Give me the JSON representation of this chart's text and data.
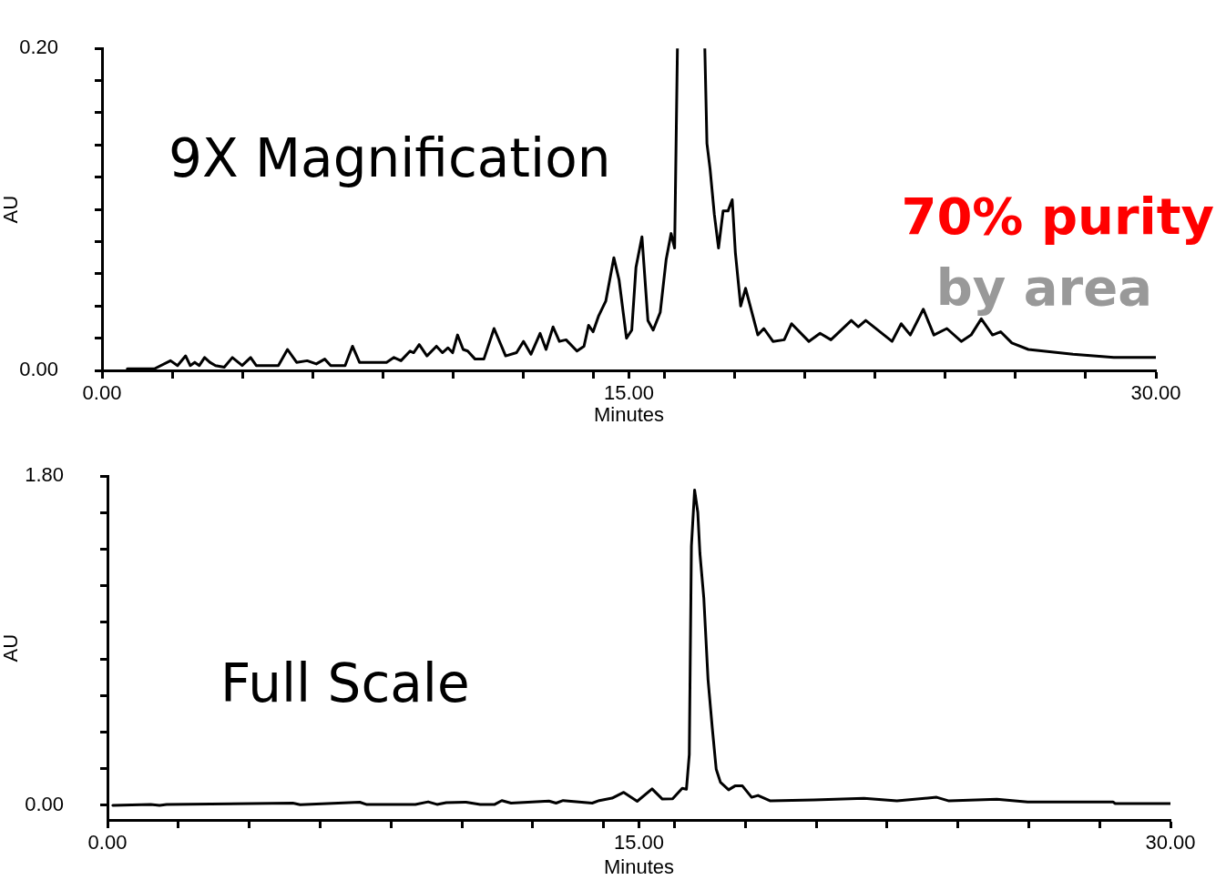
{
  "chart_data": [
    {
      "type": "line",
      "xlabel": "Minutes",
      "ylabel": "AU",
      "color": "#000000",
      "marker": "none",
      "line_style": "solid",
      "grid": false,
      "annotations": [
        "9X Magnification",
        "70% purity",
        "by area"
      ],
      "xlim": [
        0,
        30
      ],
      "ylim": [
        0,
        0.2
      ],
      "xticks": [
        {
          "value": 0,
          "label": "0.00"
        },
        {
          "value": 2,
          "label": null
        },
        {
          "value": 4,
          "label": null
        },
        {
          "value": 6,
          "label": null
        },
        {
          "value": 8,
          "label": null
        },
        {
          "value": 10,
          "label": null
        },
        {
          "value": 12,
          "label": null
        },
        {
          "value": 14,
          "label": null
        },
        {
          "value": 15,
          "label": "15.00"
        },
        {
          "value": 16,
          "label": null
        },
        {
          "value": 18,
          "label": null
        },
        {
          "value": 20,
          "label": null
        },
        {
          "value": 22,
          "label": null
        },
        {
          "value": 24,
          "label": null
        },
        {
          "value": 26,
          "label": null
        },
        {
          "value": 28,
          "label": null
        },
        {
          "value": 30,
          "label": "30.00"
        }
      ],
      "yticks": [
        {
          "value": 0,
          "label": "0.00"
        },
        {
          "value": 0.02,
          "label": null
        },
        {
          "value": 0.04,
          "label": null
        },
        {
          "value": 0.06,
          "label": null
        },
        {
          "value": 0.08,
          "label": null
        },
        {
          "value": 0.1,
          "label": null
        },
        {
          "value": 0.12,
          "label": null
        },
        {
          "value": 0.14,
          "label": null
        },
        {
          "value": 0.16,
          "label": null
        },
        {
          "value": 0.18,
          "label": null
        },
        {
          "value": 0.2,
          "label": "0.20"
        }
      ],
      "x": [
        0.72,
        1.49,
        1.95,
        2.15,
        2.38,
        2.51,
        2.64,
        2.77,
        2.92,
        3.07,
        3.23,
        3.48,
        3.71,
        3.99,
        4.23,
        4.39,
        5.02,
        5.28,
        5.54,
        5.84,
        6.1,
        6.34,
        6.51,
        6.92,
        7.13,
        7.33,
        7.89,
        8.1,
        8.31,
        8.51,
        8.77,
        8.87,
        9.03,
        9.25,
        9.52,
        9.69,
        9.85,
        9.98,
        10.12,
        10.28,
        10.41,
        10.62,
        10.87,
        11.16,
        11.49,
        11.8,
        12.0,
        12.21,
        12.47,
        12.64,
        12.84,
        13.02,
        13.21,
        13.52,
        13.72,
        13.85,
        13.98,
        14.14,
        14.34,
        14.57,
        14.72,
        14.93,
        15.08,
        15.2,
        15.37,
        15.54,
        15.69,
        15.89,
        16.06,
        16.2,
        16.3,
        16.38,
        16.8,
        17.16,
        17.22,
        17.31,
        17.43,
        17.55,
        17.68,
        17.82,
        17.94,
        18.03,
        18.18,
        18.32,
        18.67,
        18.84,
        19.1,
        19.42,
        19.63,
        20.12,
        20.44,
        20.75,
        21.33,
        21.53,
        21.74,
        22.49,
        22.75,
        23.01,
        23.38,
        23.68,
        24.05,
        24.46,
        24.74,
        25.03,
        25.35,
        25.58,
        25.9,
        26.37,
        27.64,
        28.8,
        30.0
      ],
      "values": [
        0.001,
        0.001,
        0.006,
        0.003,
        0.009,
        0.003,
        0.005,
        0.003,
        0.008,
        0.005,
        0.003,
        0.002,
        0.008,
        0.003,
        0.008,
        0.003,
        0.003,
        0.013,
        0.005,
        0.006,
        0.004,
        0.007,
        0.003,
        0.003,
        0.015,
        0.005,
        0.005,
        0.005,
        0.008,
        0.006,
        0.012,
        0.011,
        0.016,
        0.009,
        0.015,
        0.011,
        0.014,
        0.011,
        0.022,
        0.013,
        0.012,
        0.007,
        0.007,
        0.026,
        0.009,
        0.011,
        0.018,
        0.01,
        0.023,
        0.013,
        0.027,
        0.018,
        0.019,
        0.012,
        0.015,
        0.028,
        0.024,
        0.034,
        0.043,
        0.07,
        0.056,
        0.02,
        0.025,
        0.064,
        0.083,
        0.031,
        0.025,
        0.036,
        0.069,
        0.085,
        0.076,
        0.2,
        null,
        0.2,
        0.141,
        0.125,
        0.097,
        0.076,
        0.099,
        0.099,
        0.106,
        0.073,
        0.04,
        0.051,
        0.022,
        0.026,
        0.018,
        0.019,
        0.029,
        0.018,
        0.023,
        0.019,
        0.031,
        0.027,
        0.031,
        0.018,
        0.029,
        0.022,
        0.038,
        0.022,
        0.026,
        0.018,
        0.022,
        0.032,
        0.022,
        0.024,
        0.017,
        0.013,
        0.01,
        0.008,
        0.008
      ]
    },
    {
      "type": "line",
      "xlabel": "Minutes",
      "ylabel": "AU",
      "color": "#000000",
      "marker": "none",
      "line_style": "solid",
      "grid": false,
      "annotations": [
        "Full Scale"
      ],
      "xlim": [
        0,
        30
      ],
      "ylim": [
        -0.08,
        1.8
      ],
      "xticks": [
        {
          "value": 0,
          "label": "0.00"
        },
        {
          "value": 2,
          "label": null
        },
        {
          "value": 4,
          "label": null
        },
        {
          "value": 6,
          "label": null
        },
        {
          "value": 8,
          "label": null
        },
        {
          "value": 10,
          "label": null
        },
        {
          "value": 12,
          "label": null
        },
        {
          "value": 14,
          "label": null
        },
        {
          "value": 15,
          "label": "15.00"
        },
        {
          "value": 16,
          "label": null
        },
        {
          "value": 18,
          "label": null
        },
        {
          "value": 20,
          "label": null
        },
        {
          "value": 22,
          "label": null
        },
        {
          "value": 24,
          "label": null
        },
        {
          "value": 26,
          "label": null
        },
        {
          "value": 28,
          "label": null
        },
        {
          "value": 30,
          "label": "30.00"
        }
      ],
      "yticks": [
        {
          "value": 0,
          "label": "0.00"
        },
        {
          "value": 0.2,
          "label": null
        },
        {
          "value": 0.4,
          "label": null
        },
        {
          "value": 0.6,
          "label": null
        },
        {
          "value": 0.8,
          "label": null
        },
        {
          "value": 1.0,
          "label": null
        },
        {
          "value": 1.2,
          "label": null
        },
        {
          "value": 1.4,
          "label": null
        },
        {
          "value": 1.6,
          "label": null
        },
        {
          "value": 1.8,
          "label": "1.80"
        }
      ],
      "x": [
        0.15,
        1.22,
        1.47,
        1.67,
        5.23,
        5.44,
        7.12,
        7.32,
        8.69,
        9.05,
        9.3,
        9.56,
        10.12,
        10.52,
        10.93,
        11.13,
        11.39,
        12.46,
        12.66,
        12.86,
        13.68,
        13.88,
        14.24,
        14.57,
        14.95,
        15.37,
        15.66,
        15.95,
        16.22,
        16.34,
        16.42,
        16.48,
        16.57,
        16.66,
        16.72,
        16.83,
        16.95,
        17.07,
        17.18,
        17.3,
        17.53,
        17.71,
        17.92,
        18.18,
        18.36,
        18.71,
        19.94,
        21.35,
        22.28,
        23.4,
        23.75,
        25.1,
        25.97,
        28.38,
        28.44,
        30.0
      ],
      "values": [
        0.0,
        0.005,
        0.0,
        0.005,
        0.012,
        0.003,
        0.017,
        0.004,
        0.005,
        0.019,
        0.005,
        0.015,
        0.017,
        0.005,
        0.005,
        0.026,
        0.012,
        0.023,
        0.012,
        0.026,
        0.012,
        0.026,
        0.039,
        0.071,
        0.022,
        0.09,
        0.034,
        0.036,
        0.093,
        0.088,
        0.278,
        1.418,
        1.724,
        1.602,
        1.378,
        1.134,
        0.686,
        0.421,
        0.197,
        0.126,
        0.085,
        0.106,
        0.106,
        0.044,
        0.054,
        0.024,
        0.03,
        0.038,
        0.024,
        0.044,
        0.024,
        0.033,
        0.018,
        0.018,
        0.01,
        0.01
      ]
    }
  ]
}
